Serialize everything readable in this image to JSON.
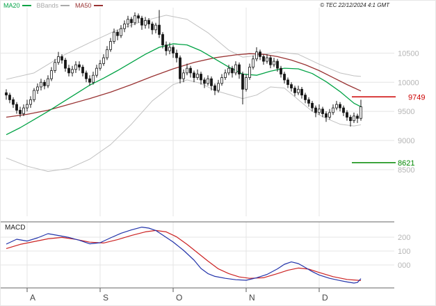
{
  "header": {
    "legend": [
      {
        "label": "MA20",
        "color": "#00a244"
      },
      {
        "label": "BBands",
        "color": "#aaaaaa"
      },
      {
        "label": "MA50",
        "color": "#993333"
      }
    ],
    "copyright": "© TEC 22/12/2024 4:1 GMT"
  },
  "chart_data": {
    "type": "candlestick",
    "title": "",
    "x_axis": {
      "month_labels": [
        "A",
        "S",
        "O",
        "N",
        "D"
      ],
      "month_start_indices": [
        6,
        27,
        48,
        69,
        90
      ]
    },
    "y_axis": {
      "ticks": [
        10500,
        10000,
        9500,
        9000,
        8500
      ],
      "ylim": [
        7700,
        11280
      ]
    },
    "levels": [
      {
        "value": 9749,
        "label": "9749",
        "color": "#cc0000"
      },
      {
        "value": 8621,
        "label": "8621",
        "color": "#008800"
      }
    ],
    "candles": [
      [
        9820,
        9880,
        9700,
        9780
      ],
      [
        9780,
        9820,
        9640,
        9700
      ],
      [
        9700,
        9740,
        9560,
        9620
      ],
      [
        9620,
        9660,
        9460,
        9520
      ],
      [
        9520,
        9580,
        9400,
        9460
      ],
      [
        9460,
        9620,
        9420,
        9560
      ],
      [
        9560,
        9700,
        9500,
        9620
      ],
      [
        9620,
        9760,
        9560,
        9700
      ],
      [
        9700,
        9900,
        9660,
        9860
      ],
      [
        9860,
        9980,
        9800,
        9920
      ],
      [
        9920,
        10060,
        9860,
        10000
      ],
      [
        10000,
        10040,
        9880,
        9940
      ],
      [
        9940,
        10120,
        9900,
        10060
      ],
      [
        10060,
        10260,
        10020,
        10200
      ],
      [
        10200,
        10400,
        10160,
        10340
      ],
      [
        10340,
        10520,
        10300,
        10440
      ],
      [
        10440,
        10480,
        10320,
        10380
      ],
      [
        10380,
        10420,
        10180,
        10240
      ],
      [
        10240,
        10300,
        10100,
        10160
      ],
      [
        10160,
        10280,
        10100,
        10220
      ],
      [
        10220,
        10360,
        10160,
        10300
      ],
      [
        10300,
        10360,
        10200,
        10260
      ],
      [
        10260,
        10300,
        10100,
        10160
      ],
      [
        10160,
        10200,
        10000,
        10060
      ],
      [
        10060,
        10120,
        9940,
        10000
      ],
      [
        10000,
        10180,
        9960,
        10120
      ],
      [
        10120,
        10300,
        10080,
        10240
      ],
      [
        10240,
        10380,
        10200,
        10320
      ],
      [
        10320,
        10480,
        10280,
        10420
      ],
      [
        10420,
        10620,
        10380,
        10560
      ],
      [
        10560,
        10760,
        10520,
        10700
      ],
      [
        10700,
        10920,
        10660,
        10860
      ],
      [
        10860,
        10900,
        10720,
        10800
      ],
      [
        10800,
        10980,
        10760,
        10920
      ],
      [
        10920,
        11060,
        10860,
        11000
      ],
      [
        11000,
        11140,
        10940,
        11080
      ],
      [
        11080,
        11120,
        10940,
        11020
      ],
      [
        11020,
        11200,
        10980,
        11140
      ],
      [
        11140,
        11180,
        11020,
        11100
      ],
      [
        11100,
        11140,
        10900,
        10980
      ],
      [
        10980,
        11120,
        10920,
        11060
      ],
      [
        11060,
        11100,
        10920,
        11000
      ],
      [
        11000,
        11040,
        10820,
        10900
      ],
      [
        10900,
        11020,
        10840,
        10980
      ],
      [
        10980,
        11240,
        10760,
        10820
      ],
      [
        10820,
        10860,
        10580,
        10640
      ],
      [
        10640,
        10700,
        10460,
        10540
      ],
      [
        10540,
        10680,
        10480,
        10600
      ],
      [
        10600,
        10640,
        10420,
        10500
      ],
      [
        10500,
        10560,
        10340,
        10420
      ],
      [
        10420,
        10460,
        9980,
        10060
      ],
      [
        10060,
        10220,
        10000,
        10160
      ],
      [
        10160,
        10320,
        10120,
        10240
      ],
      [
        10240,
        10280,
        10080,
        10160
      ],
      [
        10160,
        10200,
        10000,
        10080
      ],
      [
        10080,
        10220,
        10040,
        10140
      ],
      [
        10140,
        10180,
        9960,
        10040
      ],
      [
        10040,
        10080,
        9900,
        9980
      ],
      [
        9980,
        10120,
        9940,
        10060
      ],
      [
        10060,
        10100,
        9860,
        9940
      ],
      [
        9940,
        9980,
        9780,
        9860
      ],
      [
        9860,
        10040,
        9820,
        9980
      ],
      [
        9980,
        10140,
        9940,
        10080
      ],
      [
        10080,
        10220,
        10040,
        10160
      ],
      [
        10160,
        10300,
        10120,
        10240
      ],
      [
        10240,
        10280,
        10080,
        10160
      ],
      [
        10160,
        10360,
        10120,
        10300
      ],
      [
        10300,
        10340,
        10060,
        10140
      ],
      [
        10140,
        10180,
        9620,
        9880
      ],
      [
        9880,
        10140,
        9840,
        10080
      ],
      [
        10080,
        10320,
        10040,
        10260
      ],
      [
        10260,
        10460,
        10220,
        10400
      ],
      [
        10400,
        10600,
        10360,
        10520
      ],
      [
        10520,
        10560,
        10380,
        10440
      ],
      [
        10440,
        10480,
        10300,
        10360
      ],
      [
        10360,
        10480,
        10320,
        10420
      ],
      [
        10420,
        10460,
        10240,
        10300
      ],
      [
        10300,
        10420,
        10260,
        10360
      ],
      [
        10360,
        10400,
        10180,
        10240
      ],
      [
        10240,
        10280,
        10080,
        10140
      ],
      [
        10140,
        10180,
        9980,
        10040
      ],
      [
        10040,
        10080,
        9900,
        9960
      ],
      [
        9960,
        10000,
        9840,
        9900
      ],
      [
        9900,
        9940,
        9760,
        9820
      ],
      [
        9820,
        9940,
        9780,
        9880
      ],
      [
        9880,
        9920,
        9720,
        9780
      ],
      [
        9780,
        9820,
        9640,
        9700
      ],
      [
        9700,
        9740,
        9580,
        9640
      ],
      [
        9640,
        9680,
        9500,
        9560
      ],
      [
        9560,
        9600,
        9400,
        9480
      ],
      [
        9480,
        9620,
        9440,
        9540
      ],
      [
        9540,
        9580,
        9400,
        9460
      ],
      [
        9460,
        9500,
        9320,
        9400
      ],
      [
        9400,
        9540,
        9360,
        9480
      ],
      [
        9480,
        9620,
        9440,
        9560
      ],
      [
        9560,
        9680,
        9520,
        9620
      ],
      [
        9620,
        9660,
        9500,
        9560
      ],
      [
        9560,
        9600,
        9420,
        9480
      ],
      [
        9480,
        9520,
        9340,
        9400
      ],
      [
        9400,
        9440,
        9240,
        9340
      ],
      [
        9340,
        9480,
        9300,
        9420
      ],
      [
        9420,
        9460,
        9300,
        9380
      ],
      [
        9380,
        9700,
        9340,
        9580
      ]
    ],
    "overlays": {
      "ma20": {
        "color": "#00a244",
        "points": [
          [
            0,
            9100
          ],
          [
            4,
            9220
          ],
          [
            8,
            9360
          ],
          [
            12,
            9500
          ],
          [
            16,
            9650
          ],
          [
            20,
            9800
          ],
          [
            24,
            9950
          ],
          [
            28,
            10070
          ],
          [
            32,
            10200
          ],
          [
            36,
            10340
          ],
          [
            40,
            10480
          ],
          [
            44,
            10600
          ],
          [
            48,
            10660
          ],
          [
            52,
            10640
          ],
          [
            56,
            10540
          ],
          [
            60,
            10400
          ],
          [
            64,
            10260
          ],
          [
            68,
            10140
          ],
          [
            72,
            10120
          ],
          [
            76,
            10190
          ],
          [
            80,
            10240
          ],
          [
            84,
            10230
          ],
          [
            88,
            10150
          ],
          [
            92,
            10010
          ],
          [
            96,
            9840
          ],
          [
            100,
            9640
          ],
          [
            102,
            9580
          ]
        ]
      },
      "ma50": {
        "color": "#993333",
        "points": [
          [
            0,
            9400
          ],
          [
            6,
            9450
          ],
          [
            12,
            9520
          ],
          [
            18,
            9620
          ],
          [
            24,
            9720
          ],
          [
            30,
            9830
          ],
          [
            36,
            9960
          ],
          [
            42,
            10100
          ],
          [
            48,
            10230
          ],
          [
            54,
            10340
          ],
          [
            60,
            10420
          ],
          [
            66,
            10470
          ],
          [
            70,
            10490
          ],
          [
            74,
            10480
          ],
          [
            78,
            10440
          ],
          [
            82,
            10380
          ],
          [
            86,
            10300
          ],
          [
            90,
            10200
          ],
          [
            94,
            10080
          ],
          [
            98,
            9960
          ],
          [
            102,
            9850
          ]
        ]
      },
      "bb_upper": {
        "color": "#c0c0c0",
        "points": [
          [
            0,
            10050
          ],
          [
            8,
            10160
          ],
          [
            16,
            10450
          ],
          [
            24,
            10680
          ],
          [
            32,
            10900
          ],
          [
            40,
            11060
          ],
          [
            46,
            11150
          ],
          [
            52,
            11080
          ],
          [
            58,
            10850
          ],
          [
            64,
            10550
          ],
          [
            68,
            10430
          ],
          [
            72,
            10460
          ],
          [
            78,
            10520
          ],
          [
            84,
            10480
          ],
          [
            90,
            10310
          ],
          [
            96,
            10160
          ],
          [
            100,
            10110
          ],
          [
            102,
            10100
          ]
        ]
      },
      "bb_lower": {
        "color": "#c0c0c0",
        "points": [
          [
            0,
            8700
          ],
          [
            6,
            8560
          ],
          [
            12,
            8470
          ],
          [
            18,
            8520
          ],
          [
            24,
            8680
          ],
          [
            30,
            8930
          ],
          [
            36,
            9280
          ],
          [
            42,
            9680
          ],
          [
            48,
            9960
          ],
          [
            52,
            10040
          ],
          [
            56,
            9980
          ],
          [
            60,
            9860
          ],
          [
            64,
            9790
          ],
          [
            68,
            9720
          ],
          [
            72,
            9780
          ],
          [
            76,
            9920
          ],
          [
            80,
            9900
          ],
          [
            84,
            9700
          ],
          [
            88,
            9500
          ],
          [
            92,
            9380
          ],
          [
            96,
            9280
          ],
          [
            100,
            9250
          ],
          [
            102,
            9270
          ]
        ]
      }
    },
    "macd": {
      "label": "MACD",
      "y_axis": {
        "ticks": [
          200,
          100,
          0
        ],
        "tick_labels": [
          "200",
          "100",
          "000"
        ],
        "ylim": [
          -160,
          310
        ]
      },
      "macd_line": {
        "color": "#2233aa",
        "points": [
          [
            0,
            150
          ],
          [
            3,
            185
          ],
          [
            6,
            172
          ],
          [
            9,
            195
          ],
          [
            12,
            225
          ],
          [
            15,
            212
          ],
          [
            18,
            198
          ],
          [
            21,
            178
          ],
          [
            24,
            152
          ],
          [
            27,
            160
          ],
          [
            30,
            195
          ],
          [
            33,
            228
          ],
          [
            36,
            252
          ],
          [
            39,
            272
          ],
          [
            41,
            265
          ],
          [
            43,
            248
          ],
          [
            45,
            215
          ],
          [
            48,
            165
          ],
          [
            51,
            105
          ],
          [
            54,
            35
          ],
          [
            56,
            -25
          ],
          [
            58,
            -62
          ],
          [
            60,
            -82
          ],
          [
            63,
            -96
          ],
          [
            66,
            -106
          ],
          [
            69,
            -110
          ],
          [
            72,
            -92
          ],
          [
            75,
            -68
          ],
          [
            78,
            -28
          ],
          [
            80,
            5
          ],
          [
            82,
            22
          ],
          [
            84,
            10
          ],
          [
            86,
            -18
          ],
          [
            88,
            -48
          ],
          [
            90,
            -72
          ],
          [
            93,
            -96
          ],
          [
            96,
            -112
          ],
          [
            98,
            -122
          ],
          [
            100,
            -130
          ],
          [
            101,
            -126
          ],
          [
            102,
            -98
          ]
        ]
      },
      "signal_line": {
        "color": "#cc2222",
        "points": [
          [
            0,
            118
          ],
          [
            4,
            148
          ],
          [
            8,
            168
          ],
          [
            12,
            188
          ],
          [
            16,
            198
          ],
          [
            20,
            184
          ],
          [
            24,
            164
          ],
          [
            28,
            158
          ],
          [
            32,
            182
          ],
          [
            36,
            212
          ],
          [
            40,
            238
          ],
          [
            43,
            248
          ],
          [
            46,
            238
          ],
          [
            49,
            202
          ],
          [
            52,
            148
          ],
          [
            55,
            88
          ],
          [
            58,
            28
          ],
          [
            61,
            -28
          ],
          [
            64,
            -62
          ],
          [
            67,
            -86
          ],
          [
            70,
            -96
          ],
          [
            74,
            -92
          ],
          [
            78,
            -62
          ],
          [
            81,
            -38
          ],
          [
            84,
            -22
          ],
          [
            87,
            -30
          ],
          [
            90,
            -54
          ],
          [
            94,
            -84
          ],
          [
            98,
            -104
          ],
          [
            102,
            -112
          ]
        ]
      }
    }
  }
}
